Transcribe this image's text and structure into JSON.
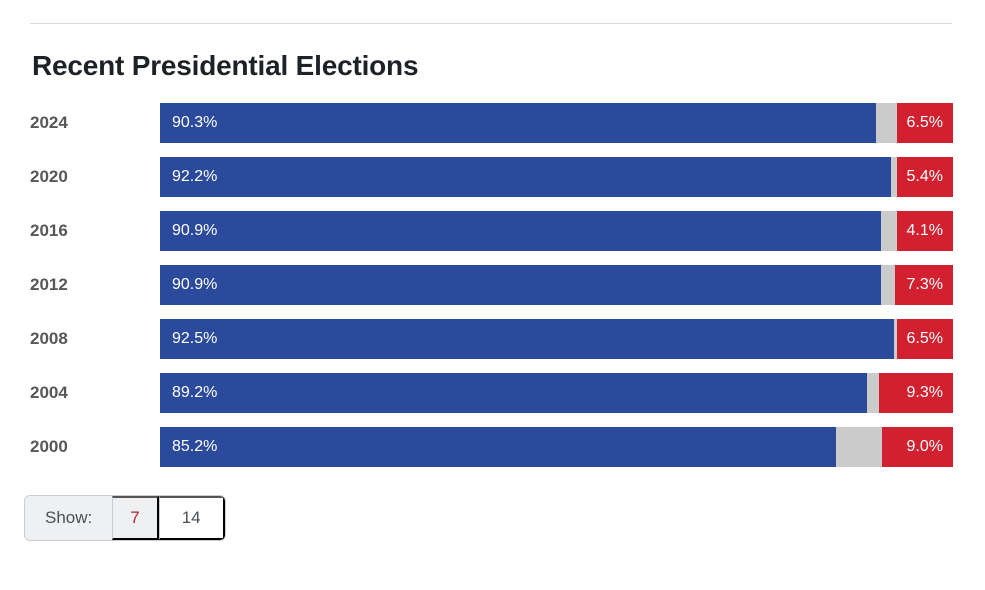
{
  "page": {
    "title": "Recent Presidential Elections"
  },
  "chart_data": {
    "type": "bar",
    "orientation": "horizontal",
    "stacked": true,
    "title": "Recent Presidential Elections",
    "categories": [
      "2024",
      "2020",
      "2016",
      "2012",
      "2008",
      "2004",
      "2000"
    ],
    "series": [
      {
        "name": "blue-left-segment",
        "color": "#2b4a9b",
        "values": [
          90.3,
          92.2,
          90.9,
          90.9,
          92.5,
          89.2,
          85.2
        ]
      },
      {
        "name": "gray-middle-segment",
        "color": "#cbcbcb",
        "values": [
          3.2,
          2.4,
          5.0,
          1.8,
          1.0,
          1.5,
          5.8
        ]
      },
      {
        "name": "red-right-segment",
        "color": "#d1202f",
        "values": [
          6.5,
          5.4,
          4.1,
          7.3,
          6.5,
          9.3,
          9.0
        ]
      }
    ],
    "xlim": [
      0,
      100
    ],
    "value_labels": true,
    "legend": "none",
    "rows": [
      {
        "year": "2024",
        "blue": 90.3,
        "blue_label": "90.3%",
        "red": 6.5,
        "red_label": "6.5%"
      },
      {
        "year": "2020",
        "blue": 92.2,
        "blue_label": "92.2%",
        "red": 5.4,
        "red_label": "5.4%"
      },
      {
        "year": "2016",
        "blue": 90.9,
        "blue_label": "90.9%",
        "red": 4.1,
        "red_label": "4.1%"
      },
      {
        "year": "2012",
        "blue": 90.9,
        "blue_label": "90.9%",
        "red": 7.3,
        "red_label": "7.3%"
      },
      {
        "year": "2008",
        "blue": 92.5,
        "blue_label": "92.5%",
        "red": 6.5,
        "red_label": "6.5%"
      },
      {
        "year": "2004",
        "blue": 89.2,
        "blue_label": "89.2%",
        "red": 9.3,
        "red_label": "9.3%"
      },
      {
        "year": "2000",
        "blue": 85.2,
        "blue_label": "85.2%",
        "red": 9.0,
        "red_label": "9.0%"
      }
    ]
  },
  "show_control": {
    "label": "Show:",
    "options": [
      {
        "label": "7",
        "selected": true
      },
      {
        "label": "14",
        "selected": false
      }
    ]
  },
  "colors": {
    "blue_segment": "#2b4a9b",
    "gray_segment": "#cbcbcb",
    "red_segment": "#d1202f",
    "rule": "#dcdcdc",
    "title_text": "#1e2227",
    "year_text": "#575757",
    "show_selected_text": "#b0282e"
  }
}
